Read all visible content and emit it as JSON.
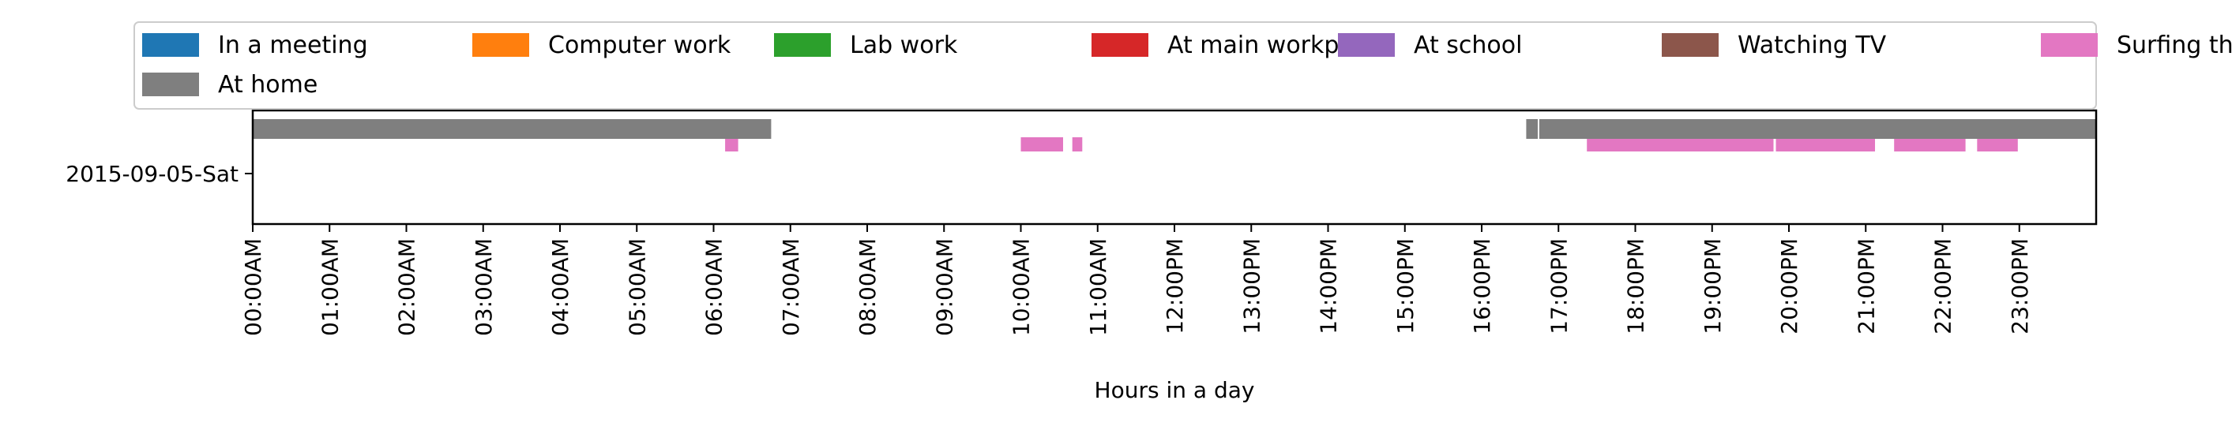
{
  "chart_data": {
    "type": "timeline",
    "title": "",
    "xlabel": "Hours in a day",
    "ylabel": "",
    "xlim": [
      0,
      24
    ],
    "x_ticks": [
      {
        "value": 0,
        "label": "00:00AM"
      },
      {
        "value": 1,
        "label": "01:00AM"
      },
      {
        "value": 2,
        "label": "02:00AM"
      },
      {
        "value": 3,
        "label": "03:00AM"
      },
      {
        "value": 4,
        "label": "04:00AM"
      },
      {
        "value": 5,
        "label": "05:00AM"
      },
      {
        "value": 6,
        "label": "06:00AM"
      },
      {
        "value": 7,
        "label": "07:00AM"
      },
      {
        "value": 8,
        "label": "08:00AM"
      },
      {
        "value": 9,
        "label": "09:00AM"
      },
      {
        "value": 10,
        "label": "10:00AM"
      },
      {
        "value": 11,
        "label": "11:00AM"
      },
      {
        "value": 12,
        "label": "12:00PM"
      },
      {
        "value": 13,
        "label": "13:00PM"
      },
      {
        "value": 14,
        "label": "14:00PM"
      },
      {
        "value": 15,
        "label": "15:00PM"
      },
      {
        "value": 16,
        "label": "16:00PM"
      },
      {
        "value": 17,
        "label": "17:00PM"
      },
      {
        "value": 18,
        "label": "18:00PM"
      },
      {
        "value": 19,
        "label": "19:00PM"
      },
      {
        "value": 20,
        "label": "20:00PM"
      },
      {
        "value": 21,
        "label": "21:00PM"
      },
      {
        "value": 22,
        "label": "22:00PM"
      },
      {
        "value": 23,
        "label": "23:00PM"
      }
    ],
    "categories": [
      "2015-09-05-Sat"
    ],
    "legend_position": "top",
    "grid": false,
    "series": [
      {
        "name": "In a meeting",
        "color": "#1f77b4",
        "intervals": []
      },
      {
        "name": "Computer work",
        "color": "#ff7f0e",
        "intervals": []
      },
      {
        "name": "Lab work",
        "color": "#2ca02c",
        "intervals": []
      },
      {
        "name": "At main workplace",
        "color": "#d62728",
        "intervals": []
      },
      {
        "name": "At school",
        "color": "#9467bd",
        "intervals": []
      },
      {
        "name": "Watching TV",
        "color": "#8c564b",
        "intervals": []
      },
      {
        "name": "Surfing the internet",
        "color": "#e377c2",
        "intervals": [
          [
            6.15,
            6.32
          ],
          [
            10.0,
            10.55
          ],
          [
            10.67,
            10.8
          ],
          [
            17.37,
            19.8
          ],
          [
            19.83,
            21.12
          ],
          [
            21.37,
            22.3
          ],
          [
            22.45,
            22.98
          ]
        ]
      },
      {
        "name": "At home",
        "color": "#7f7f7f",
        "intervals": [
          [
            0.0,
            6.75
          ],
          [
            16.58,
            16.73
          ],
          [
            16.75,
            24.0
          ]
        ]
      }
    ]
  }
}
